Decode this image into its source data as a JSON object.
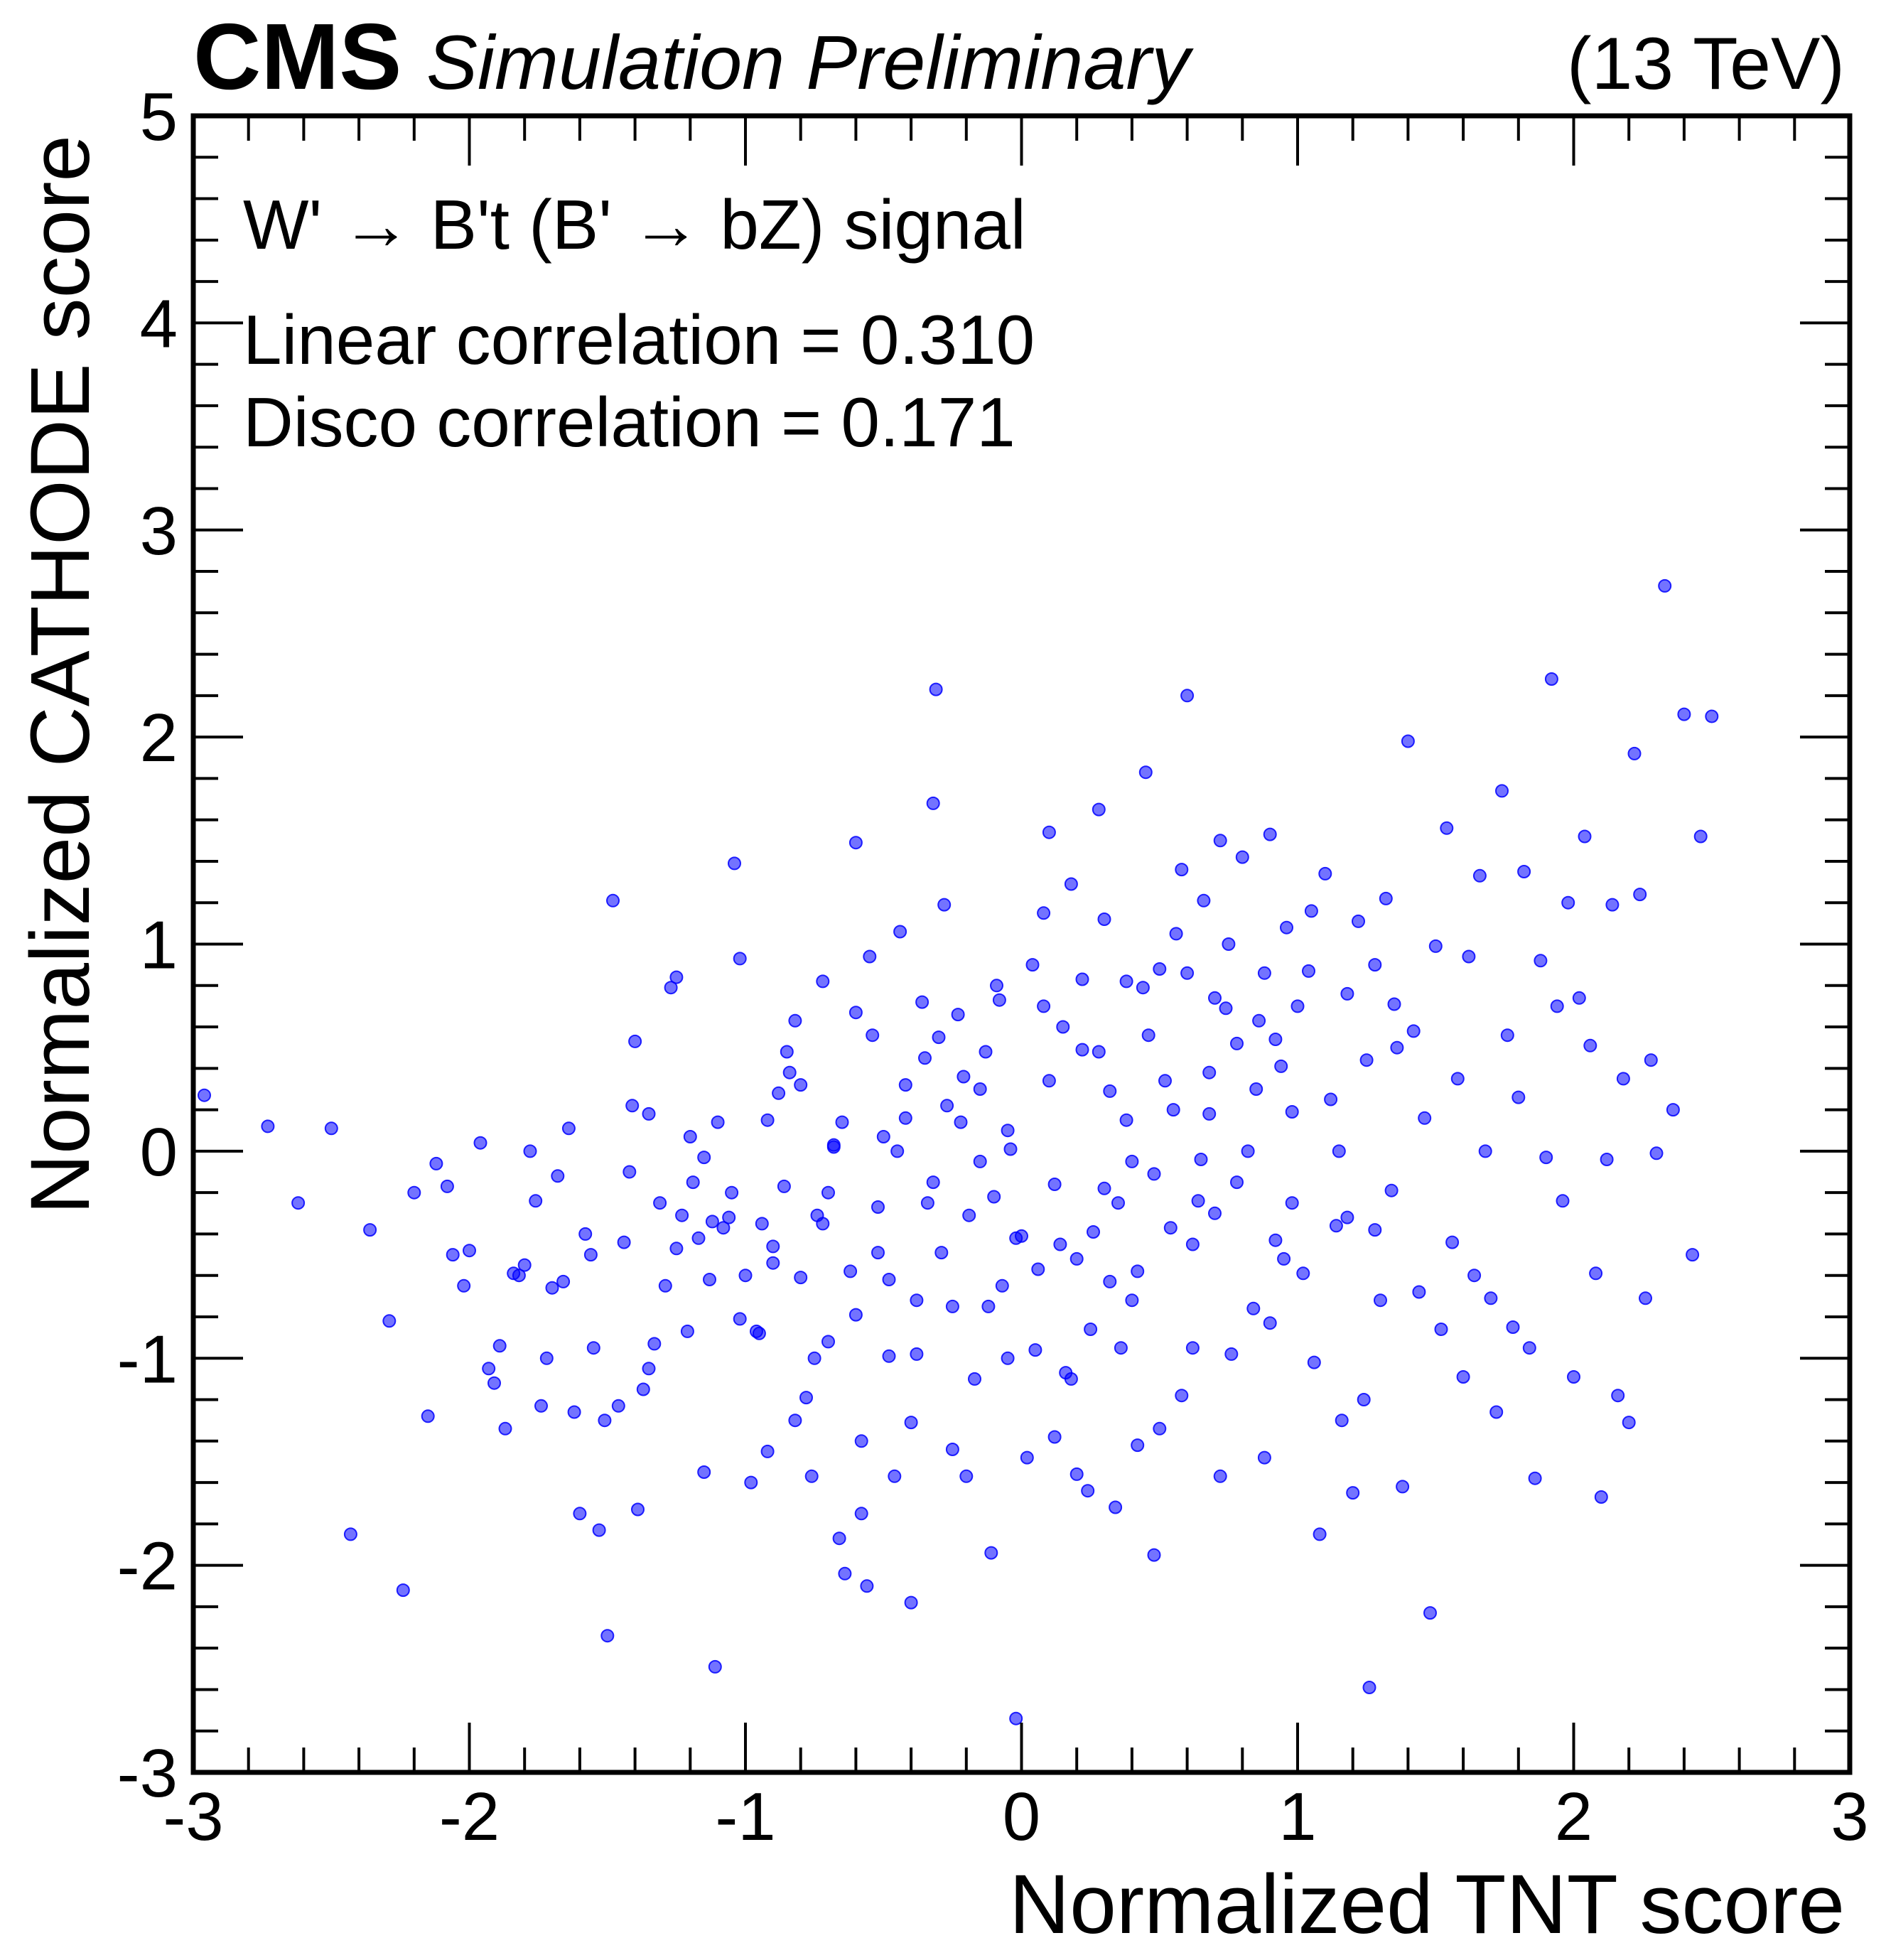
{
  "header": {
    "experiment": "CMS",
    "status": "Simulation Preliminary",
    "energy": "(13 TeV)"
  },
  "annotations": {
    "process": "W' → B't (B' → bZ) signal",
    "linear_correlation": "Linear correlation = 0.310",
    "disco_correlation": "Disco correlation = 0.171"
  },
  "chart_data": {
    "type": "scatter",
    "xlabel": "Normalized TNT score",
    "ylabel": "Normalized CATHODE score",
    "xlim": [
      -3,
      3
    ],
    "ylim": [
      -3,
      5
    ],
    "x_ticks": [
      "-3",
      "-2",
      "-1",
      "0",
      "1",
      "2",
      "3"
    ],
    "y_ticks": [
      "-3",
      "-2",
      "-1",
      "0",
      "1",
      "2",
      "3",
      "4",
      "5"
    ],
    "grid": false,
    "marker_color": "#0000ff",
    "marker_opacity": 0.55,
    "point_sample_note": "",
    "points": [
      [
        -2.96,
        0.27
      ],
      [
        -2.73,
        0.12
      ],
      [
        -2.62,
        -0.25
      ],
      [
        -2.5,
        0.11
      ],
      [
        -2.43,
        -1.85
      ],
      [
        -2.36,
        -0.38
      ],
      [
        -2.29,
        -0.82
      ],
      [
        -2.24,
        -2.12
      ],
      [
        -2.2,
        -0.2
      ],
      [
        -2.15,
        -1.28
      ],
      [
        -2.12,
        -0.06
      ],
      [
        -2.08,
        -0.17
      ],
      [
        -2.06,
        -0.5
      ],
      [
        -2.02,
        -0.65
      ],
      [
        -2.0,
        -0.48
      ],
      [
        -1.96,
        0.04
      ],
      [
        -1.93,
        -1.05
      ],
      [
        -1.91,
        -1.12
      ],
      [
        -1.89,
        -0.94
      ],
      [
        -1.87,
        -1.34
      ],
      [
        -1.84,
        -0.59
      ],
      [
        -1.82,
        -0.6
      ],
      [
        -1.8,
        -0.55
      ],
      [
        -1.78,
        0.0
      ],
      [
        -1.76,
        -0.24
      ],
      [
        -1.74,
        -1.23
      ],
      [
        -1.72,
        -1.0
      ],
      [
        -1.7,
        -0.66
      ],
      [
        -1.68,
        -0.12
      ],
      [
        -1.66,
        -0.63
      ],
      [
        -1.64,
        0.11
      ],
      [
        -1.62,
        -1.26
      ],
      [
        -1.6,
        -1.75
      ],
      [
        -1.58,
        -0.4
      ],
      [
        -1.56,
        -0.5
      ],
      [
        -1.55,
        -0.95
      ],
      [
        -1.53,
        -1.83
      ],
      [
        -1.51,
        -1.3
      ],
      [
        -1.5,
        -2.34
      ],
      [
        -1.48,
        1.21
      ],
      [
        -1.46,
        -1.23
      ],
      [
        -1.44,
        -0.44
      ],
      [
        -1.42,
        -0.1
      ],
      [
        -1.41,
        0.22
      ],
      [
        -1.39,
        -1.73
      ],
      [
        -1.37,
        -1.15
      ],
      [
        -1.35,
        0.18
      ],
      [
        -1.33,
        -0.93
      ],
      [
        -1.31,
        -0.25
      ],
      [
        -1.29,
        -0.65
      ],
      [
        -1.27,
        0.79
      ],
      [
        -1.25,
        0.84
      ],
      [
        -1.23,
        -0.31
      ],
      [
        -1.21,
        -0.87
      ],
      [
        -1.19,
        -0.15
      ],
      [
        -1.17,
        -0.42
      ],
      [
        -1.15,
        -0.03
      ],
      [
        -1.13,
        -0.62
      ],
      [
        -1.11,
        -2.49
      ],
      [
        -1.1,
        0.14
      ],
      [
        -1.08,
        -0.37
      ],
      [
        -1.06,
        -0.32
      ],
      [
        -1.04,
        1.39
      ],
      [
        -1.02,
        -0.81
      ],
      [
        -1.0,
        -0.6
      ],
      [
        -0.98,
        -1.6
      ],
      [
        -0.96,
        -0.87
      ],
      [
        -0.94,
        -0.35
      ],
      [
        -0.92,
        -1.45
      ],
      [
        -0.9,
        -0.54
      ],
      [
        -0.88,
        0.28
      ],
      [
        -0.86,
        -0.17
      ],
      [
        -0.84,
        0.38
      ],
      [
        -0.82,
        -1.3
      ],
      [
        -0.8,
        -0.61
      ],
      [
        -0.78,
        -1.19
      ],
      [
        -0.76,
        -1.57
      ],
      [
        -0.74,
        -0.31
      ],
      [
        -0.72,
        0.82
      ],
      [
        -0.7,
        -0.92
      ],
      [
        -0.68,
        0.02
      ],
      [
        -0.66,
        -1.87
      ],
      [
        -0.64,
        -2.04
      ],
      [
        -0.62,
        -0.58
      ],
      [
        -0.6,
        0.67
      ],
      [
        -0.58,
        -1.4
      ],
      [
        -0.56,
        -2.1
      ],
      [
        -0.54,
        0.56
      ],
      [
        -0.52,
        -0.49
      ],
      [
        -0.5,
        0.07
      ],
      [
        -0.48,
        -0.99
      ],
      [
        -0.46,
        -1.57
      ],
      [
        -0.44,
        1.06
      ],
      [
        -0.42,
        0.16
      ],
      [
        -0.4,
        -2.18
      ],
      [
        -0.38,
        -0.72
      ],
      [
        -0.36,
        0.72
      ],
      [
        -0.34,
        -0.25
      ],
      [
        -0.32,
        1.68
      ],
      [
        -0.31,
        2.23
      ],
      [
        -0.29,
        -0.49
      ],
      [
        -0.27,
        0.22
      ],
      [
        -0.25,
        -1.44
      ],
      [
        -0.23,
        0.66
      ],
      [
        -0.21,
        0.36
      ],
      [
        -0.19,
        -0.31
      ],
      [
        -0.17,
        -1.1
      ],
      [
        -0.15,
        -0.05
      ],
      [
        -0.13,
        0.48
      ],
      [
        -0.11,
        -1.94
      ],
      [
        -0.09,
        0.8
      ],
      [
        -0.07,
        -0.65
      ],
      [
        -0.05,
        -1.0
      ],
      [
        -0.04,
        0.01
      ],
      [
        -0.02,
        -2.74
      ],
      [
        0.0,
        -0.41
      ],
      [
        0.02,
        -1.48
      ],
      [
        0.04,
        0.9
      ],
      [
        0.06,
        -0.57
      ],
      [
        0.08,
        1.15
      ],
      [
        0.1,
        1.54
      ],
      [
        0.12,
        -1.38
      ],
      [
        0.14,
        -0.45
      ],
      [
        0.16,
        -1.07
      ],
      [
        0.18,
        1.29
      ],
      [
        0.2,
        -0.52
      ],
      [
        0.22,
        0.49
      ],
      [
        0.24,
        -1.64
      ],
      [
        0.26,
        -0.39
      ],
      [
        0.28,
        1.65
      ],
      [
        0.3,
        -0.18
      ],
      [
        0.32,
        0.29
      ],
      [
        0.34,
        -1.72
      ],
      [
        0.36,
        -0.95
      ],
      [
        0.38,
        0.15
      ],
      [
        0.4,
        -0.72
      ],
      [
        0.42,
        -1.42
      ],
      [
        0.44,
        0.79
      ],
      [
        0.46,
        0.56
      ],
      [
        0.48,
        -0.11
      ],
      [
        0.5,
        -1.34
      ],
      [
        0.52,
        0.34
      ],
      [
        0.54,
        -0.37
      ],
      [
        0.56,
        1.05
      ],
      [
        0.58,
        -1.18
      ],
      [
        0.6,
        0.86
      ],
      [
        0.62,
        -0.45
      ],
      [
        0.64,
        -0.24
      ],
      [
        0.66,
        1.21
      ],
      [
        0.68,
        0.18
      ],
      [
        0.7,
        0.74
      ],
      [
        0.72,
        -1.57
      ],
      [
        0.74,
        0.69
      ],
      [
        0.76,
        -0.98
      ],
      [
        0.78,
        0.52
      ],
      [
        0.8,
        1.42
      ],
      [
        0.82,
        0.0
      ],
      [
        0.84,
        -0.76
      ],
      [
        0.86,
        0.63
      ],
      [
        0.88,
        -1.48
      ],
      [
        0.9,
        1.53
      ],
      [
        0.92,
        -0.43
      ],
      [
        0.94,
        0.41
      ],
      [
        0.96,
        1.08
      ],
      [
        0.98,
        -0.25
      ],
      [
        1.0,
        0.7
      ],
      [
        1.02,
        -0.59
      ],
      [
        1.04,
        0.87
      ],
      [
        1.06,
        -1.02
      ],
      [
        1.08,
        -1.85
      ],
      [
        1.1,
        1.34
      ],
      [
        1.12,
        0.25
      ],
      [
        1.14,
        -0.36
      ],
      [
        1.16,
        -1.3
      ],
      [
        1.18,
        0.76
      ],
      [
        1.2,
        -1.65
      ],
      [
        1.22,
        1.11
      ],
      [
        1.24,
        -1.2
      ],
      [
        1.26,
        -2.59
      ],
      [
        1.28,
        0.9
      ],
      [
        1.3,
        -0.72
      ],
      [
        1.32,
        1.22
      ],
      [
        1.34,
        -0.19
      ],
      [
        1.36,
        0.5
      ],
      [
        1.38,
        -1.62
      ],
      [
        1.4,
        1.98
      ],
      [
        1.42,
        0.58
      ],
      [
        1.44,
        -0.68
      ],
      [
        1.46,
        0.16
      ],
      [
        1.48,
        -2.23
      ],
      [
        1.5,
        0.99
      ],
      [
        1.52,
        -0.86
      ],
      [
        1.54,
        1.56
      ],
      [
        1.56,
        -0.44
      ],
      [
        1.58,
        0.35
      ],
      [
        1.6,
        -1.09
      ],
      [
        1.62,
        0.94
      ],
      [
        1.64,
        -0.6
      ],
      [
        1.66,
        1.33
      ],
      [
        1.68,
        0.0
      ],
      [
        1.7,
        -0.71
      ],
      [
        1.72,
        -1.26
      ],
      [
        1.74,
        1.74
      ],
      [
        1.76,
        0.56
      ],
      [
        1.78,
        -0.85
      ],
      [
        1.8,
        0.26
      ],
      [
        1.82,
        1.35
      ],
      [
        1.84,
        -0.95
      ],
      [
        1.86,
        -1.58
      ],
      [
        1.88,
        0.92
      ],
      [
        1.9,
        -0.03
      ],
      [
        1.92,
        2.28
      ],
      [
        1.94,
        0.7
      ],
      [
        1.96,
        -0.24
      ],
      [
        1.98,
        1.2
      ],
      [
        2.0,
        -1.09
      ],
      [
        2.02,
        0.74
      ],
      [
        2.04,
        1.52
      ],
      [
        2.06,
        0.51
      ],
      [
        2.08,
        -0.59
      ],
      [
        2.1,
        -1.67
      ],
      [
        2.12,
        -0.04
      ],
      [
        2.14,
        1.19
      ],
      [
        2.16,
        -1.18
      ],
      [
        2.18,
        0.35
      ],
      [
        2.2,
        -1.31
      ],
      [
        2.22,
        1.92
      ],
      [
        2.24,
        1.24
      ],
      [
        2.26,
        -0.71
      ],
      [
        2.28,
        0.44
      ],
      [
        2.3,
        -0.01
      ],
      [
        2.33,
        2.73
      ],
      [
        2.36,
        0.2
      ],
      [
        2.4,
        2.11
      ],
      [
        2.43,
        -0.5
      ],
      [
        2.46,
        1.52
      ],
      [
        2.5,
        2.1
      ],
      [
        -1.35,
        -1.05
      ],
      [
        -0.7,
        -0.2
      ],
      [
        0.22,
        0.83
      ],
      [
        -0.6,
        -0.79
      ],
      [
        0.65,
        -0.04
      ],
      [
        -0.15,
        0.3
      ],
      [
        0.45,
        1.83
      ],
      [
        -0.85,
        0.48
      ],
      [
        0.25,
        -0.86
      ],
      [
        -0.45,
        0.0
      ],
      [
        0.95,
        -0.52
      ],
      [
        -1.05,
        -0.2
      ],
      [
        0.15,
        0.6
      ],
      [
        -0.25,
        -0.75
      ],
      [
        0.75,
        1.0
      ],
      [
        -0.55,
        0.94
      ],
      [
        0.05,
        -0.96
      ],
      [
        0.35,
        -0.25
      ],
      [
        -0.35,
        0.45
      ],
      [
        1.15,
        0.0
      ],
      [
        -1.25,
        -0.47
      ],
      [
        0.55,
        0.2
      ],
      [
        -0.75,
        -1.0
      ],
      [
        0.85,
        0.3
      ],
      [
        -0.05,
        0.1
      ],
      [
        -0.95,
        -0.88
      ],
      [
        0.6,
        2.2
      ],
      [
        1.25,
        0.44
      ],
      [
        -0.1,
        -0.22
      ],
      [
        0.3,
        1.12
      ],
      [
        -1.4,
        0.53
      ],
      [
        -0.2,
        -1.57
      ],
      [
        0.7,
        -0.3
      ],
      [
        -0.65,
        0.14
      ],
      [
        0.1,
        0.34
      ],
      [
        -1.15,
        -1.55
      ],
      [
        1.05,
        1.16
      ],
      [
        -0.4,
        -1.31
      ],
      [
        0.4,
        -0.05
      ],
      [
        -0.8,
        0.32
      ],
      [
        0.9,
        -0.83
      ],
      [
        -0.3,
        0.55
      ],
      [
        0.2,
        -1.56
      ],
      [
        -0.6,
        1.49
      ],
      [
        1.35,
        0.71
      ],
      [
        -1.2,
        0.07
      ],
      [
        0.5,
        0.88
      ],
      [
        -0.9,
        -0.46
      ],
      [
        0.12,
        -0.16
      ],
      [
        -0.48,
        -0.62
      ],
      [
        0.78,
        -0.15
      ],
      [
        -0.22,
        0.14
      ],
      [
        0.58,
        1.36
      ],
      [
        -1.02,
        0.93
      ],
      [
        0.32,
        -0.63
      ],
      [
        -0.12,
        -0.75
      ],
      [
        0.98,
        0.19
      ],
      [
        -0.72,
        -0.35
      ],
      [
        0.08,
        0.7
      ],
      [
        -0.58,
        -1.75
      ],
      [
        0.68,
        0.38
      ],
      [
        -0.32,
        -0.15
      ],
      [
        0.48,
        -1.95
      ],
      [
        -1.12,
        -0.34
      ],
      [
        1.18,
        -0.32
      ],
      [
        -0.42,
        0.32
      ],
      [
        0.28,
        0.48
      ],
      [
        -0.82,
        0.63
      ],
      [
        0.88,
        0.86
      ],
      [
        -0.02,
        -0.42
      ],
      [
        0.38,
        0.82
      ],
      [
        -0.52,
        -0.27
      ],
      [
        0.62,
        -0.95
      ],
      [
        -0.92,
        0.15
      ],
      [
        1.28,
        -0.38
      ],
      [
        -0.28,
        1.19
      ],
      [
        0.18,
        -1.1
      ],
      [
        -0.68,
        0.03
      ],
      [
        0.72,
        1.5
      ],
      [
        -0.08,
        0.73
      ],
      [
        0.42,
        -0.58
      ],
      [
        -0.38,
        -0.98
      ],
      [
        0.92,
        0.54
      ]
    ]
  }
}
